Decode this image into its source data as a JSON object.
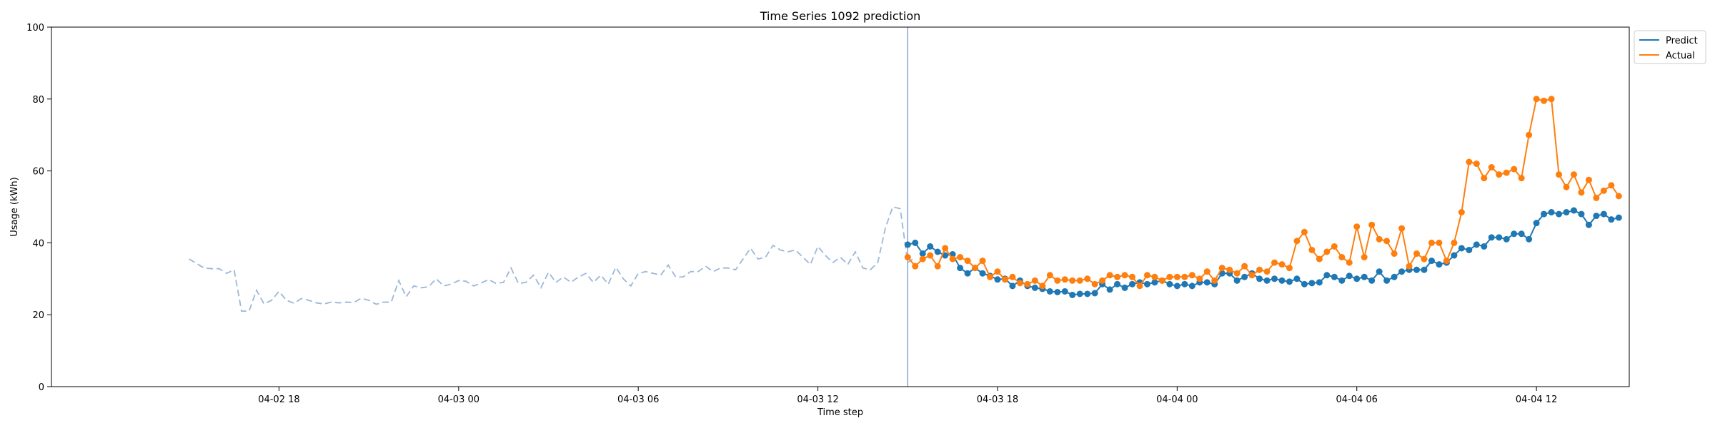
{
  "chart_data": {
    "type": "line",
    "title": "Time Series 1092 prediction",
    "xlabel": "Time step",
    "ylabel": "Usage (kWh)",
    "ylim": [
      0,
      100
    ],
    "y_ticks": [
      0,
      20,
      40,
      60,
      80,
      100
    ],
    "x_range_hours": [
      -7.6,
      45.1
    ],
    "x_ticks": [
      {
        "hour": 0,
        "label": "04-02 18"
      },
      {
        "hour": 6,
        "label": "04-03 00"
      },
      {
        "hour": 12,
        "label": "04-03 06"
      },
      {
        "hour": 18,
        "label": "04-03 12"
      },
      {
        "hour": 24,
        "label": "04-03 18"
      },
      {
        "hour": 30,
        "label": "04-04 00"
      },
      {
        "hour": 36,
        "label": "04-04 06"
      },
      {
        "hour": 42,
        "label": "04-04 12"
      }
    ],
    "x_origin_label": "04-02 18",
    "x_step_hours": 0.25,
    "forecast_start_hour": 21.0,
    "legend_position": "top-right",
    "legend": [
      "Predict",
      "Actual"
    ],
    "history": {
      "color": "#9bb7d9",
      "start_hour": -3.0,
      "values": [
        35.5,
        34.2,
        33.0,
        32.8,
        32.8,
        31.5,
        32.5,
        21.0,
        21.0,
        26.8,
        23.0,
        24.0,
        26.5,
        24.0,
        23.2,
        24.5,
        24.0,
        23.3,
        23.0,
        23.5,
        23.3,
        23.5,
        23.4,
        24.6,
        24.0,
        22.9,
        23.5,
        23.5,
        29.5,
        25.0,
        28.0,
        27.5,
        27.8,
        30.0,
        28.0,
        28.5,
        29.5,
        29.3,
        28.0,
        28.8,
        29.8,
        28.7,
        29.0,
        33.0,
        28.7,
        29.0,
        31.0,
        27.5,
        31.8,
        29.0,
        30.5,
        29.0,
        30.5,
        31.5,
        29.0,
        31.0,
        28.5,
        33.2,
        30.0,
        28.0,
        31.5,
        32.0,
        31.5,
        31.0,
        33.8,
        30.5,
        30.5,
        32.0,
        32.0,
        33.5,
        32.0,
        33.0,
        33.0,
        32.5,
        35.5,
        38.5,
        35.5,
        36.0,
        39.3,
        38.0,
        37.5,
        38.0,
        36.0,
        34.0,
        39.0,
        36.5,
        34.5,
        36.0,
        34.0,
        37.5,
        33.0,
        32.5,
        34.5,
        44.0,
        50.0,
        49.5,
        34.5,
        36.0
      ]
    },
    "series": [
      {
        "name": "Predict",
        "color": "#1f77b4",
        "start_hour": 21.0,
        "values": [
          39.5,
          40.0,
          37.0,
          39.0,
          37.5,
          36.5,
          36.8,
          33.0,
          31.5,
          33.0,
          31.5,
          30.8,
          29.8,
          30.0,
          28.0,
          29.5,
          28.0,
          27.5,
          27.2,
          26.5,
          26.3,
          26.5,
          25.5,
          25.8,
          25.8,
          26.0,
          28.5,
          27.0,
          28.5,
          27.5,
          28.5,
          29.0,
          28.5,
          29.0,
          29.5,
          28.5,
          28.0,
          28.5,
          28.0,
          29.0,
          29.0,
          28.5,
          31.5,
          31.5,
          29.5,
          30.5,
          31.5,
          30.0,
          29.5,
          30.0,
          29.5,
          29.2,
          30.0,
          28.5,
          28.8,
          29.0,
          31.0,
          30.5,
          29.5,
          30.8,
          30.0,
          30.5,
          29.5,
          32.0,
          29.5,
          30.5,
          32.0,
          32.5,
          32.5,
          32.5,
          35.0,
          34.0,
          34.5,
          36.5,
          38.5,
          38.0,
          39.5,
          39.0,
          41.5,
          41.5,
          41.0,
          42.5,
          42.5,
          41.0,
          45.5,
          48.0,
          48.5,
          48.0,
          48.5,
          49.0,
          48.0,
          45.0,
          47.5,
          48.0,
          46.5,
          47.0
        ]
      },
      {
        "name": "Actual",
        "color": "#ff7f0e",
        "start_hour": 21.0,
        "values": [
          36.0,
          33.5,
          35.5,
          36.5,
          33.5,
          38.5,
          35.5,
          36.0,
          35.0,
          33.0,
          35.0,
          30.5,
          32.0,
          29.8,
          30.5,
          28.8,
          28.5,
          29.5,
          28.0,
          31.0,
          29.5,
          29.8,
          29.5,
          29.5,
          30.0,
          28.5,
          29.5,
          31.0,
          30.5,
          31.0,
          30.5,
          28.0,
          31.0,
          30.5,
          29.5,
          30.5,
          30.5,
          30.5,
          31.0,
          30.0,
          32.0,
          29.5,
          33.0,
          32.5,
          31.5,
          33.5,
          31.0,
          32.5,
          32.0,
          34.5,
          34.0,
          33.0,
          40.5,
          43.0,
          38.0,
          35.5,
          37.5,
          39.0,
          36.0,
          34.5,
          44.5,
          36.0,
          45.0,
          41.0,
          40.5,
          37.0,
          44.0,
          33.5,
          37.0,
          35.5,
          40.0,
          40.0,
          35.0,
          40.0,
          48.5,
          62.5,
          62.0,
          58.0,
          61.0,
          59.0,
          59.5,
          60.5,
          58.0,
          70.0,
          80.0,
          79.5,
          80.0,
          59.0,
          55.5,
          59.0,
          54.0,
          57.5,
          52.5,
          54.5,
          56.0,
          53.0
        ]
      }
    ]
  }
}
